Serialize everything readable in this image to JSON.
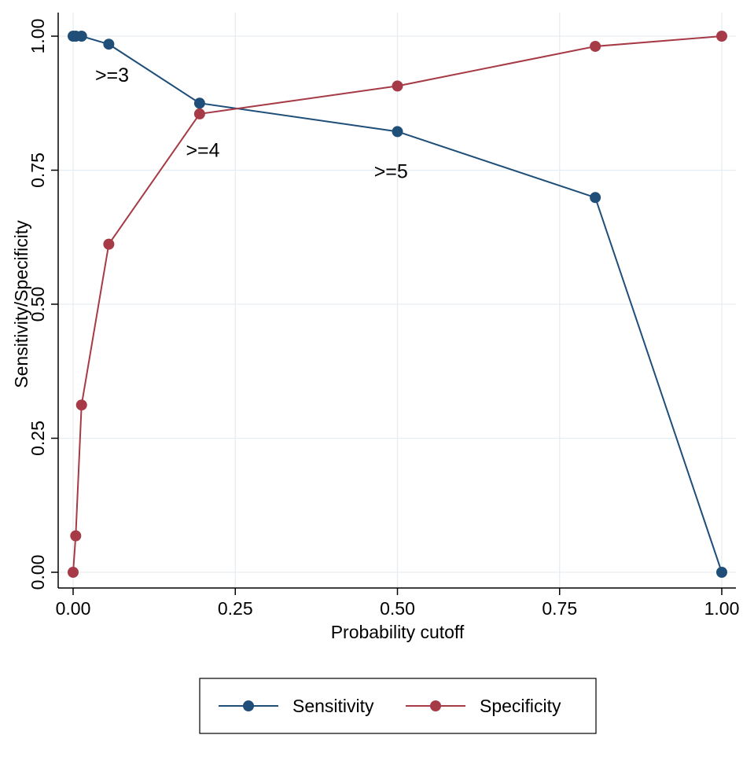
{
  "chart_data": {
    "type": "line",
    "title": "",
    "xlabel": "Probability cutoff",
    "ylabel": "Sensitivity/Specificity",
    "xlim": [
      0,
      1
    ],
    "ylim": [
      0,
      1
    ],
    "xticks": [
      "0.00",
      "0.25",
      "0.50",
      "0.75",
      "1.00"
    ],
    "yticks": [
      "0.00",
      "0.25",
      "0.50",
      "0.75",
      "1.00"
    ],
    "grid": true,
    "legend_position": "bottom",
    "series": [
      {
        "name": "Sensitivity",
        "color": "#1f4e79",
        "x": [
          0.0,
          0.004,
          0.013,
          0.055,
          0.195,
          0.5,
          0.805,
          1.0
        ],
        "y": [
          1.0,
          1.0,
          1.0,
          0.985,
          0.875,
          0.822,
          0.699,
          0.0
        ]
      },
      {
        "name": "Specificity",
        "color": "#a63a46",
        "x": [
          0.0,
          0.004,
          0.013,
          0.055,
          0.195,
          0.5,
          0.805,
          1.0
        ],
        "y": [
          0.0,
          0.068,
          0.312,
          0.612,
          0.855,
          0.907,
          0.981,
          1.0
        ]
      }
    ],
    "annotations": [
      {
        "text": ">=3",
        "x": 0.06,
        "y": 0.915
      },
      {
        "text": ">=4",
        "x": 0.2,
        "y": 0.775
      },
      {
        "text": ">=5",
        "x": 0.49,
        "y": 0.735
      }
    ]
  }
}
